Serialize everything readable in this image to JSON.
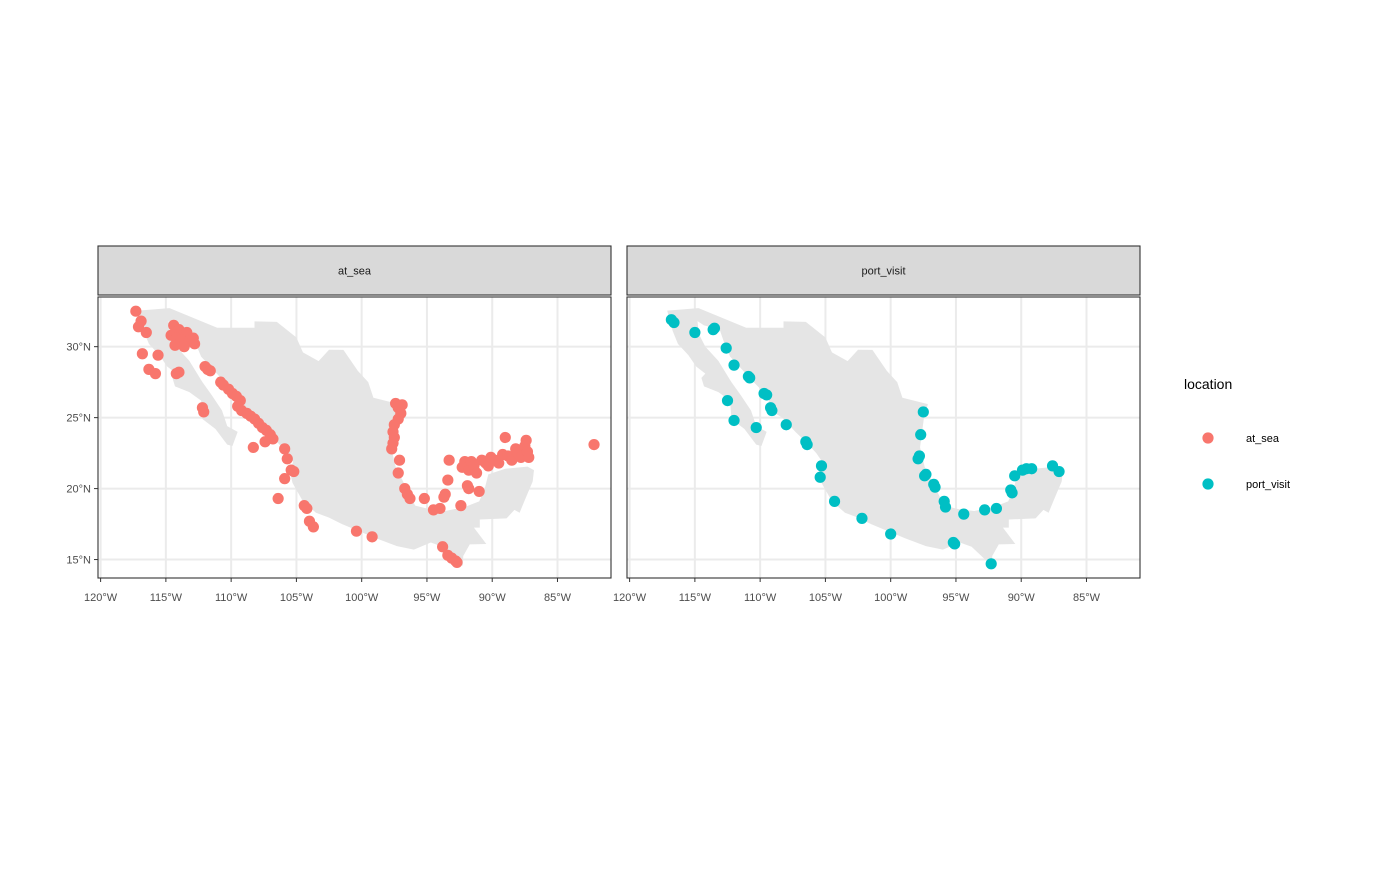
{
  "chart_data": {
    "type": "scatter",
    "subtype": "faceted map of point locations",
    "title": "",
    "xlabel": "",
    "ylabel": "",
    "xlim": [
      -120.2,
      -80.9
    ],
    "ylim": [
      13.7,
      33.5
    ],
    "x_ticks": [
      -120,
      -115,
      -110,
      -105,
      -100,
      -95,
      -90,
      -85
    ],
    "x_tick_labels": [
      "120°W",
      "115°W",
      "110°W",
      "105°W",
      "100°W",
      "95°W",
      "90°W",
      "85°W"
    ],
    "y_ticks": [
      15,
      20,
      25,
      30
    ],
    "y_tick_labels": [
      "15°N",
      "20°N",
      "25°N",
      "30°N"
    ],
    "grid": true,
    "land_color": "#e5e5e5",
    "legend": {
      "title": "location",
      "placement": "right",
      "entries": [
        {
          "label": "at_sea",
          "color": "#F8766D"
        },
        {
          "label": "port_visit",
          "color": "#00BFC4"
        }
      ]
    },
    "facets": [
      {
        "label": "at_sea",
        "color": "#F8766D",
        "points": [
          [
            -117.3,
            32.5
          ],
          [
            -116.9,
            31.8
          ],
          [
            -117.1,
            31.4
          ],
          [
            -116.5,
            31.0
          ],
          [
            -116.8,
            29.5
          ],
          [
            -116.3,
            28.4
          ],
          [
            -115.8,
            28.1
          ],
          [
            -115.6,
            29.4
          ],
          [
            -114.4,
            31.5
          ],
          [
            -114.0,
            31.2
          ],
          [
            -113.4,
            31.0
          ],
          [
            -114.6,
            30.8
          ],
          [
            -114.2,
            30.6
          ],
          [
            -113.8,
            30.5
          ],
          [
            -113.2,
            30.4
          ],
          [
            -112.8,
            30.2
          ],
          [
            -114.3,
            30.1
          ],
          [
            -113.6,
            30.0
          ],
          [
            -112.9,
            30.6
          ],
          [
            -114.0,
            28.2
          ],
          [
            -114.2,
            28.1
          ],
          [
            -112.0,
            28.6
          ],
          [
            -111.8,
            28.4
          ],
          [
            -111.6,
            28.3
          ],
          [
            -112.2,
            25.7
          ],
          [
            -112.1,
            25.4
          ],
          [
            -110.8,
            27.5
          ],
          [
            -110.6,
            27.3
          ],
          [
            -110.2,
            27.0
          ],
          [
            -109.9,
            26.7
          ],
          [
            -109.6,
            26.5
          ],
          [
            -109.3,
            26.2
          ],
          [
            -109.5,
            25.8
          ],
          [
            -109.2,
            25.5
          ],
          [
            -108.8,
            25.3
          ],
          [
            -108.5,
            25.1
          ],
          [
            -108.2,
            24.9
          ],
          [
            -107.9,
            24.6
          ],
          [
            -107.6,
            24.3
          ],
          [
            -107.3,
            24.1
          ],
          [
            -107.0,
            23.8
          ],
          [
            -106.8,
            23.5
          ],
          [
            -107.4,
            23.3
          ],
          [
            -108.3,
            22.9
          ],
          [
            -105.9,
            22.8
          ],
          [
            -105.7,
            22.1
          ],
          [
            -105.4,
            21.3
          ],
          [
            -105.2,
            21.2
          ],
          [
            -105.9,
            20.7
          ],
          [
            -106.4,
            19.3
          ],
          [
            -104.4,
            18.8
          ],
          [
            -104.2,
            18.6
          ],
          [
            -104.0,
            17.7
          ],
          [
            -103.7,
            17.3
          ],
          [
            -100.4,
            17.0
          ],
          [
            -99.2,
            16.6
          ],
          [
            -97.4,
            26.0
          ],
          [
            -97.2,
            25.7
          ],
          [
            -96.9,
            25.9
          ],
          [
            -97.0,
            25.3
          ],
          [
            -97.2,
            24.9
          ],
          [
            -97.5,
            24.5
          ],
          [
            -97.6,
            24.0
          ],
          [
            -97.5,
            23.6
          ],
          [
            -97.6,
            23.2
          ],
          [
            -97.7,
            22.8
          ],
          [
            -97.1,
            22.0
          ],
          [
            -97.2,
            21.1
          ],
          [
            -96.7,
            20.0
          ],
          [
            -96.5,
            19.6
          ],
          [
            -96.3,
            19.3
          ],
          [
            -95.2,
            19.3
          ],
          [
            -94.5,
            18.5
          ],
          [
            -94.0,
            18.6
          ],
          [
            -93.7,
            19.4
          ],
          [
            -93.6,
            19.6
          ],
          [
            -93.4,
            20.6
          ],
          [
            -93.3,
            22.0
          ],
          [
            -92.4,
            18.8
          ],
          [
            -93.8,
            15.9
          ],
          [
            -93.4,
            15.3
          ],
          [
            -93.1,
            15.1
          ],
          [
            -92.8,
            14.9
          ],
          [
            -92.7,
            14.8
          ],
          [
            -92.1,
            21.9
          ],
          [
            -92.3,
            21.5
          ],
          [
            -91.8,
            21.3
          ],
          [
            -91.6,
            21.9
          ],
          [
            -91.4,
            21.6
          ],
          [
            -91.2,
            21.1
          ],
          [
            -91.9,
            20.2
          ],
          [
            -91.8,
            20.0
          ],
          [
            -91.0,
            19.8
          ],
          [
            -90.8,
            22.0
          ],
          [
            -90.5,
            21.8
          ],
          [
            -90.3,
            21.6
          ],
          [
            -90.1,
            22.2
          ],
          [
            -89.8,
            22.0
          ],
          [
            -89.5,
            21.8
          ],
          [
            -89.2,
            22.4
          ],
          [
            -89.0,
            23.6
          ],
          [
            -88.8,
            22.3
          ],
          [
            -88.5,
            22.0
          ],
          [
            -88.2,
            22.8
          ],
          [
            -88.0,
            22.5
          ],
          [
            -87.8,
            22.2
          ],
          [
            -87.5,
            23.0
          ],
          [
            -87.3,
            22.6
          ],
          [
            -87.2,
            22.2
          ],
          [
            -87.4,
            23.4
          ],
          [
            -82.2,
            23.1
          ]
        ]
      },
      {
        "label": "port_visit",
        "color": "#00BFC4",
        "points": [
          [
            -116.8,
            31.9
          ],
          [
            -116.6,
            31.7
          ],
          [
            -115.0,
            31.0
          ],
          [
            -113.5,
            31.3
          ],
          [
            -113.6,
            31.2
          ],
          [
            -112.6,
            29.9
          ],
          [
            -112.0,
            28.7
          ],
          [
            -110.9,
            27.9
          ],
          [
            -110.8,
            27.8
          ],
          [
            -109.7,
            26.7
          ],
          [
            -109.5,
            26.6
          ],
          [
            -112.5,
            26.2
          ],
          [
            -112.0,
            24.8
          ],
          [
            -110.3,
            24.3
          ],
          [
            -109.2,
            25.7
          ],
          [
            -109.1,
            25.5
          ],
          [
            -108.0,
            24.5
          ],
          [
            -106.5,
            23.3
          ],
          [
            -106.4,
            23.1
          ],
          [
            -105.3,
            21.6
          ],
          [
            -105.4,
            20.8
          ],
          [
            -104.3,
            19.1
          ],
          [
            -102.2,
            17.9
          ],
          [
            -100.0,
            16.8
          ],
          [
            -97.5,
            25.4
          ],
          [
            -97.7,
            23.8
          ],
          [
            -97.8,
            22.3
          ],
          [
            -97.9,
            22.1
          ],
          [
            -97.3,
            21.0
          ],
          [
            -97.4,
            20.9
          ],
          [
            -96.7,
            20.3
          ],
          [
            -96.6,
            20.1
          ],
          [
            -95.9,
            19.1
          ],
          [
            -95.8,
            18.7
          ],
          [
            -95.2,
            16.2
          ],
          [
            -95.1,
            16.1
          ],
          [
            -94.4,
            18.2
          ],
          [
            -92.8,
            18.5
          ],
          [
            -91.9,
            18.6
          ],
          [
            -90.8,
            19.9
          ],
          [
            -90.7,
            19.7
          ],
          [
            -90.5,
            20.9
          ],
          [
            -89.9,
            21.3
          ],
          [
            -89.6,
            21.4
          ],
          [
            -89.2,
            21.4
          ],
          [
            -87.6,
            21.6
          ],
          [
            -87.1,
            21.2
          ],
          [
            -92.3,
            14.7
          ]
        ]
      }
    ]
  }
}
